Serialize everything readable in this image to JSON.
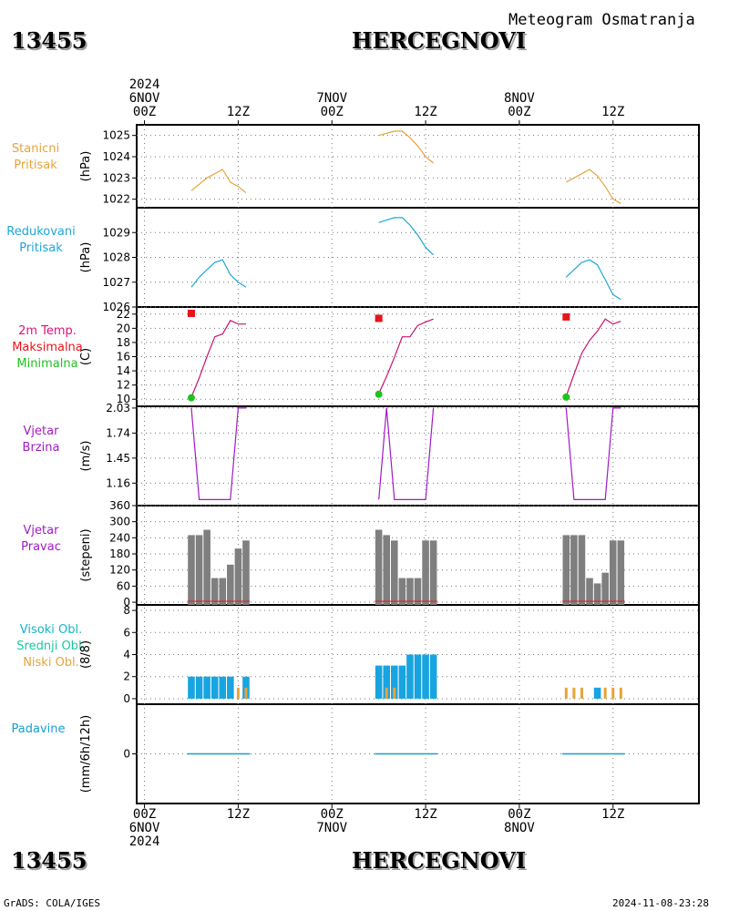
{
  "header": {
    "station_id": "13455",
    "station_name": "HERCEGNOVI",
    "subtitle": "Meteogram Osmatranja"
  },
  "footer": {
    "station_id": "13455",
    "station_name": "HERCEGNOVI",
    "credit": "GrADS: COLA/IGES",
    "timestamp": "2024-11-08-23:28"
  },
  "time_axis": {
    "top": [
      {
        "hour": 0,
        "lines": [
          "2024",
          "6NOV",
          "00Z"
        ]
      },
      {
        "hour": 12,
        "lines": [
          "12Z"
        ]
      },
      {
        "hour": 24,
        "lines": [
          "7NOV",
          "00Z"
        ]
      },
      {
        "hour": 36,
        "lines": [
          "12Z"
        ]
      },
      {
        "hour": 48,
        "lines": [
          "8NOV",
          "00Z"
        ]
      },
      {
        "hour": 60,
        "lines": [
          "12Z"
        ]
      }
    ],
    "bottom": [
      {
        "hour": 0,
        "lines": [
          "00Z",
          "6NOV",
          "2024"
        ]
      },
      {
        "hour": 12,
        "lines": [
          "12Z"
        ]
      },
      {
        "hour": 24,
        "lines": [
          "00Z",
          "7NOV"
        ]
      },
      {
        "hour": 36,
        "lines": [
          "12Z"
        ]
      },
      {
        "hour": 48,
        "lines": [
          "00Z",
          "8NOV"
        ]
      },
      {
        "hour": 60,
        "lines": [
          "12Z"
        ]
      }
    ]
  },
  "panel_labels": {
    "p1": [
      {
        "text": "Stanicni",
        "color": "#e8a33a"
      },
      {
        "text": "Pritisak",
        "color": "#e8a33a"
      }
    ],
    "p2": [
      {
        "text": "Redukovani",
        "color": "#1ea7d6"
      },
      {
        "text": "Pritisak",
        "color": "#1ea7d6"
      }
    ],
    "p3": [
      {
        "text": "2m Temp.",
        "color": "#e0117d"
      },
      {
        "text": "Maksimalna",
        "color": "#e8141b"
      },
      {
        "text": "Minimalna",
        "color": "#1bc41b"
      }
    ],
    "p4": [
      {
        "text": "Vjetar",
        "color": "#a21ac4"
      },
      {
        "text": "Brzina",
        "color": "#a21ac4"
      }
    ],
    "p5": [
      {
        "text": "Vjetar",
        "color": "#a21ac4"
      },
      {
        "text": "Pravac",
        "color": "#a21ac4"
      }
    ],
    "p6": [
      {
        "text": "Visoki Obl.",
        "color": "#14b4c8"
      },
      {
        "text": "Srednji Obl.",
        "color": "#17c8a0"
      },
      {
        "text": "Niski Obl.",
        "color": "#e8a33a"
      }
    ],
    "p7": [
      {
        "text": "Padavine",
        "color": "#14a0d2"
      }
    ]
  },
  "chart_data": [
    {
      "type": "line",
      "panel": "p1",
      "ylabel": "(hPa)",
      "ylim": [
        1021.6,
        1025.5
      ],
      "yticks": [
        1022,
        1023,
        1024,
        1025
      ],
      "color": "#e8a33a",
      "series": [
        {
          "x": [
            6,
            7,
            8,
            9,
            10,
            11,
            12,
            13
          ],
          "y": [
            1022.4,
            1022.7,
            1023.0,
            1023.2,
            1023.4,
            1022.8,
            1022.6,
            1022.3
          ]
        },
        {
          "x": [
            30,
            31,
            32,
            33,
            34,
            35,
            36,
            37
          ],
          "y": [
            1025.0,
            1025.1,
            1025.2,
            1025.2,
            1024.9,
            1024.5,
            1024.0,
            1023.7
          ]
        },
        {
          "x": [
            54,
            55,
            56,
            57,
            58,
            59,
            60,
            61
          ],
          "y": [
            1022.8,
            1023.0,
            1023.2,
            1023.4,
            1023.1,
            1022.6,
            1022.0,
            1021.8
          ]
        }
      ]
    },
    {
      "type": "line",
      "panel": "p2",
      "ylabel": "(hPa)",
      "ylim": [
        1026.0,
        1030.0
      ],
      "yticks": [
        1026,
        1027,
        1028,
        1029
      ],
      "color": "#1ea7d6",
      "series": [
        {
          "x": [
            6,
            7,
            8,
            9,
            10,
            11,
            12,
            13
          ],
          "y": [
            1026.8,
            1027.2,
            1027.5,
            1027.8,
            1027.9,
            1027.3,
            1027.0,
            1026.8
          ]
        },
        {
          "x": [
            30,
            31,
            32,
            33,
            34,
            35,
            36,
            37
          ],
          "y": [
            1029.4,
            1029.5,
            1029.6,
            1029.6,
            1029.3,
            1028.9,
            1028.4,
            1028.1
          ]
        },
        {
          "x": [
            54,
            55,
            56,
            57,
            58,
            59,
            60,
            61
          ],
          "y": [
            1027.2,
            1027.5,
            1027.8,
            1027.9,
            1027.7,
            1027.1,
            1026.5,
            1026.3
          ]
        }
      ]
    },
    {
      "type": "line",
      "panel": "p3",
      "ylabel": "(C)",
      "ylim": [
        9,
        23
      ],
      "yticks": [
        10,
        12,
        14,
        16,
        18,
        20,
        22
      ],
      "color": "#c8146e",
      "series": [
        {
          "x": [
            6,
            7,
            8,
            9,
            10,
            11,
            12,
            13
          ],
          "y": [
            10.3,
            13.0,
            16.0,
            18.8,
            19.2,
            21.1,
            20.6,
            20.6
          ]
        },
        {
          "x": [
            30,
            31,
            32,
            33,
            34,
            35,
            36,
            37
          ],
          "y": [
            10.8,
            13.2,
            15.9,
            18.8,
            18.8,
            20.4,
            20.9,
            21.3
          ]
        },
        {
          "x": [
            54,
            55,
            56,
            57,
            58,
            59,
            60,
            61
          ],
          "y": [
            10.4,
            13.5,
            16.5,
            18.3,
            19.6,
            21.3,
            20.6,
            21.0
          ]
        }
      ],
      "maxima": {
        "name": "Maksimalna",
        "color": "#e8141b",
        "points": [
          {
            "x": 6,
            "y": 22.1
          },
          {
            "x": 30,
            "y": 21.4
          },
          {
            "x": 54,
            "y": 21.6
          }
        ]
      },
      "minima": {
        "name": "Minimalna",
        "color": "#1bc41b",
        "points": [
          {
            "x": 6,
            "y": 10.2
          },
          {
            "x": 30,
            "y": 10.7
          },
          {
            "x": 54,
            "y": 10.3
          }
        ]
      }
    },
    {
      "type": "line",
      "panel": "p4",
      "ylabel": "(m/s)",
      "ylim": [
        0.9,
        2.05
      ],
      "yticks": [
        1.16,
        1.45,
        1.74,
        2.03
      ],
      "ytick_labels": [
        "1.16",
        "1.45",
        "1.74",
        "2.03"
      ],
      "color": "#a21ac4",
      "series": [
        {
          "x": [
            6,
            7,
            11,
            12,
            13
          ],
          "y": [
            2.03,
            0.97,
            0.97,
            2.03,
            2.03
          ]
        },
        {
          "x": [
            30,
            31,
            32,
            36,
            37
          ],
          "y": [
            0.97,
            2.03,
            0.97,
            0.97,
            2.03
          ]
        },
        {
          "x": [
            54,
            55,
            59,
            60,
            61
          ],
          "y": [
            2.03,
            0.97,
            0.97,
            2.03,
            2.03
          ]
        }
      ]
    },
    {
      "type": "bar",
      "panel": "p5",
      "ylabel": "(stepeni)",
      "ylim": [
        -10,
        360
      ],
      "yticks": [
        0,
        60,
        120,
        180,
        240,
        300,
        360
      ],
      "color": "#7f7f7f",
      "baseline_color": "#e8141b",
      "series": [
        {
          "x": [
            6,
            7,
            8,
            9,
            10,
            11,
            12,
            13
          ],
          "y": [
            250,
            250,
            270,
            90,
            90,
            140,
            200,
            230
          ]
        },
        {
          "x": [
            30,
            31,
            32,
            33,
            34,
            35,
            36,
            37
          ],
          "y": [
            270,
            250,
            230,
            90,
            90,
            90,
            230,
            230
          ]
        },
        {
          "x": [
            54,
            55,
            56,
            57,
            58,
            59,
            60,
            61
          ],
          "y": [
            250,
            250,
            250,
            90,
            70,
            110,
            230,
            230
          ]
        }
      ]
    },
    {
      "type": "bar",
      "panel": "p6",
      "ylabel": "(8/8)",
      "ylim": [
        -0.5,
        8.5
      ],
      "yticks": [
        0,
        2,
        4,
        6,
        8
      ],
      "high_color": "#18a4e0",
      "low_color": "#e8a33a",
      "series": [
        {
          "name": "Visoki Obl.",
          "x": [
            6,
            7,
            8,
            9,
            10,
            11,
            13,
            30,
            31,
            32,
            33,
            34,
            35,
            36,
            37,
            58
          ],
          "y": [
            2,
            2,
            2,
            2,
            2,
            2,
            2,
            3,
            3,
            3,
            3,
            4,
            4,
            4,
            4,
            1
          ]
        },
        {
          "name": "Niski Obl.",
          "x": [
            12,
            13,
            31,
            32,
            54,
            55,
            56,
            59,
            60,
            61
          ],
          "y": [
            1,
            1,
            1,
            1,
            1,
            1,
            1,
            1,
            1,
            1
          ]
        }
      ]
    },
    {
      "type": "bar",
      "panel": "p7",
      "ylabel": "(mm/6h/12h)",
      "ylim": [
        -1,
        1
      ],
      "yticks": [
        0
      ],
      "color": "#14a0d2",
      "series": [
        {
          "x": [
            6,
            7,
            8,
            9,
            10,
            11,
            12,
            13
          ],
          "y": [
            0,
            0,
            0,
            0,
            0,
            0,
            0,
            0
          ]
        },
        {
          "x": [
            30,
            31,
            32,
            33,
            34,
            35,
            36,
            37
          ],
          "y": [
            0,
            0,
            0,
            0,
            0,
            0,
            0,
            0
          ]
        },
        {
          "x": [
            54,
            55,
            56,
            57,
            58,
            59,
            60,
            61
          ],
          "y": [
            0,
            0,
            0,
            0,
            0,
            0,
            0,
            0
          ]
        }
      ]
    }
  ]
}
